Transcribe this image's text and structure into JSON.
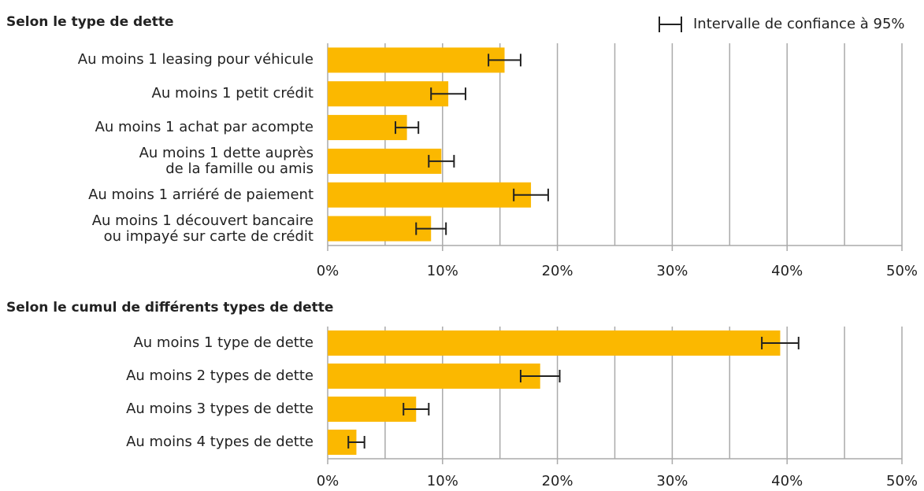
{
  "chart_data": [
    {
      "type": "bar",
      "title": "Selon le type de dette",
      "error_label": "Intervalle de confiance à 95%",
      "color": "#fbb800",
      "categories": [
        "Au moins 1 leasing pour véhicule",
        "Au moins 1 petit crédit",
        "Au moins 1 achat par acompte",
        "Au moins 1 dette auprès\nde la famille ou amis",
        "Au moins 1 arriéré de paiement",
        "Au moins 1 découvert bancaire\nou impayé sur carte de crédit"
      ],
      "values": [
        15.4,
        10.5,
        6.9,
        9.9,
        17.7,
        9.0
      ],
      "errors": [
        1.4,
        1.5,
        1.0,
        1.1,
        1.5,
        1.3
      ],
      "xlim": [
        0,
        50
      ],
      "xticks": [
        {
          "value": 0,
          "label": "0%"
        },
        {
          "value": 10,
          "label": "10%"
        },
        {
          "value": 20,
          "label": "20%"
        },
        {
          "value": 30,
          "label": "30%"
        },
        {
          "value": 40,
          "label": "40%"
        },
        {
          "value": 50,
          "label": "50%"
        }
      ],
      "xminor": [
        5,
        15,
        25,
        35,
        45
      ],
      "grid": true
    },
    {
      "type": "bar",
      "title": "Selon le cumul de différents types de dette",
      "color": "#fbb800",
      "categories": [
        "Au moins 1 type de dette",
        "Au moins 2 types de dette",
        "Au moins 3 types de dette",
        "Au moins 4 types de dette"
      ],
      "values": [
        39.4,
        18.5,
        7.7,
        2.5
      ],
      "errors": [
        1.6,
        1.7,
        1.1,
        0.7
      ],
      "xlim": [
        0,
        50
      ],
      "xticks": [
        {
          "value": 0,
          "label": "0%"
        },
        {
          "value": 10,
          "label": "10%"
        },
        {
          "value": 20,
          "label": "20%"
        },
        {
          "value": 30,
          "label": "30%"
        },
        {
          "value": 40,
          "label": "40%"
        },
        {
          "value": 50,
          "label": "50%"
        }
      ],
      "xminor": [
        5,
        15,
        25,
        35,
        45
      ],
      "grid": true
    }
  ]
}
